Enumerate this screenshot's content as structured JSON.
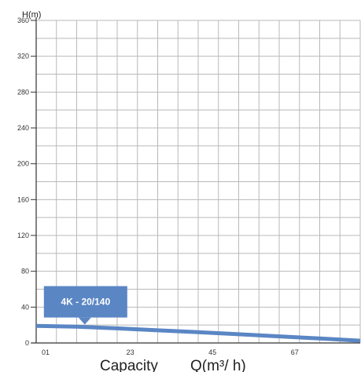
{
  "chart_data": {
    "type": "line",
    "ylabel": "H(m)",
    "xlabel": "Capacity",
    "xlabel_formula": "Q(m³/ h)",
    "ylim": [
      0,
      360
    ],
    "xlim": [
      0,
      80
    ],
    "y_ticks": [
      0,
      40,
      80,
      120,
      160,
      200,
      240,
      280,
      320,
      360
    ],
    "x_tick_labels": [
      {
        "label": "01",
        "value": 0
      },
      {
        "label": "23",
        "value": 20.9
      },
      {
        "label": "45",
        "value": 41.2
      },
      {
        "label": "67",
        "value": 61.5
      }
    ],
    "grid": true,
    "series": [
      {
        "name": "4K - 20/140",
        "color": "#5a86c4",
        "x": [
          0,
          10,
          20,
          30,
          40,
          50,
          60,
          70,
          80
        ],
        "y": [
          19,
          18.2,
          16.3,
          14.1,
          12,
          9.7,
          7.4,
          5,
          2.5
        ]
      }
    ],
    "annotation": {
      "text": "4K - 20/140",
      "color": "#5a86c4",
      "x": 12,
      "y": 17.9
    }
  }
}
